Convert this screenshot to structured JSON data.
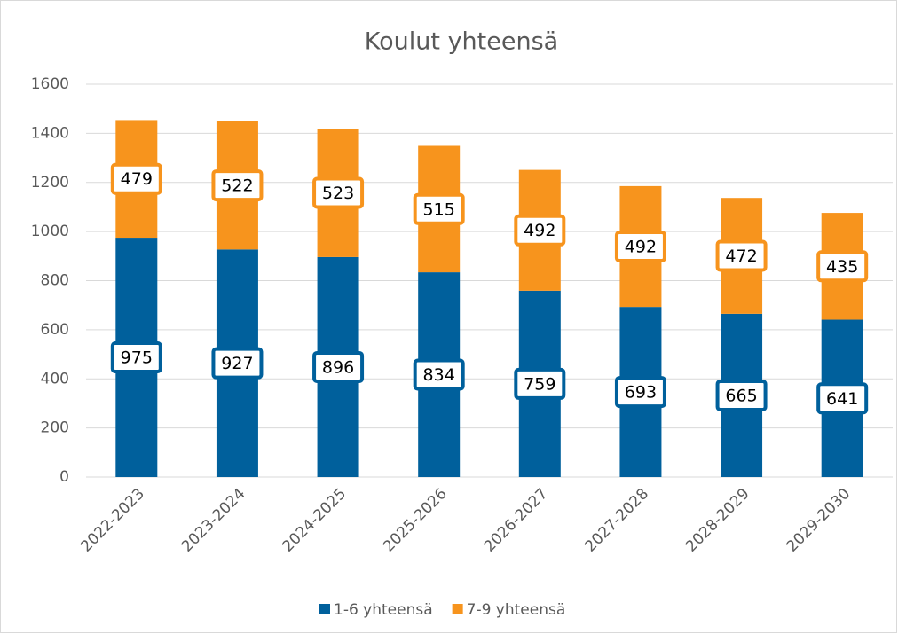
{
  "chart_data": {
    "type": "bar",
    "stacked": true,
    "title": "Koulut yhteensä",
    "categories": [
      "2022-2023",
      "2023-2024",
      "2024-2025",
      "2025-2026",
      "2026-2027",
      "2027-2028",
      "2028-2029",
      "2029-2030"
    ],
    "series": [
      {
        "name": "1-6 yhteensä",
        "color": "#00609c",
        "values": [
          975,
          927,
          896,
          834,
          759,
          693,
          665,
          641
        ]
      },
      {
        "name": "7-9 yhteensä",
        "color": "#f7941d",
        "values": [
          479,
          522,
          523,
          515,
          492,
          492,
          472,
          435
        ]
      }
    ],
    "ylim": [
      0,
      1600
    ],
    "yticks": [
      0,
      200,
      400,
      600,
      800,
      1000,
      1200,
      1400,
      1600
    ],
    "grid": true,
    "legend": "bottom"
  }
}
